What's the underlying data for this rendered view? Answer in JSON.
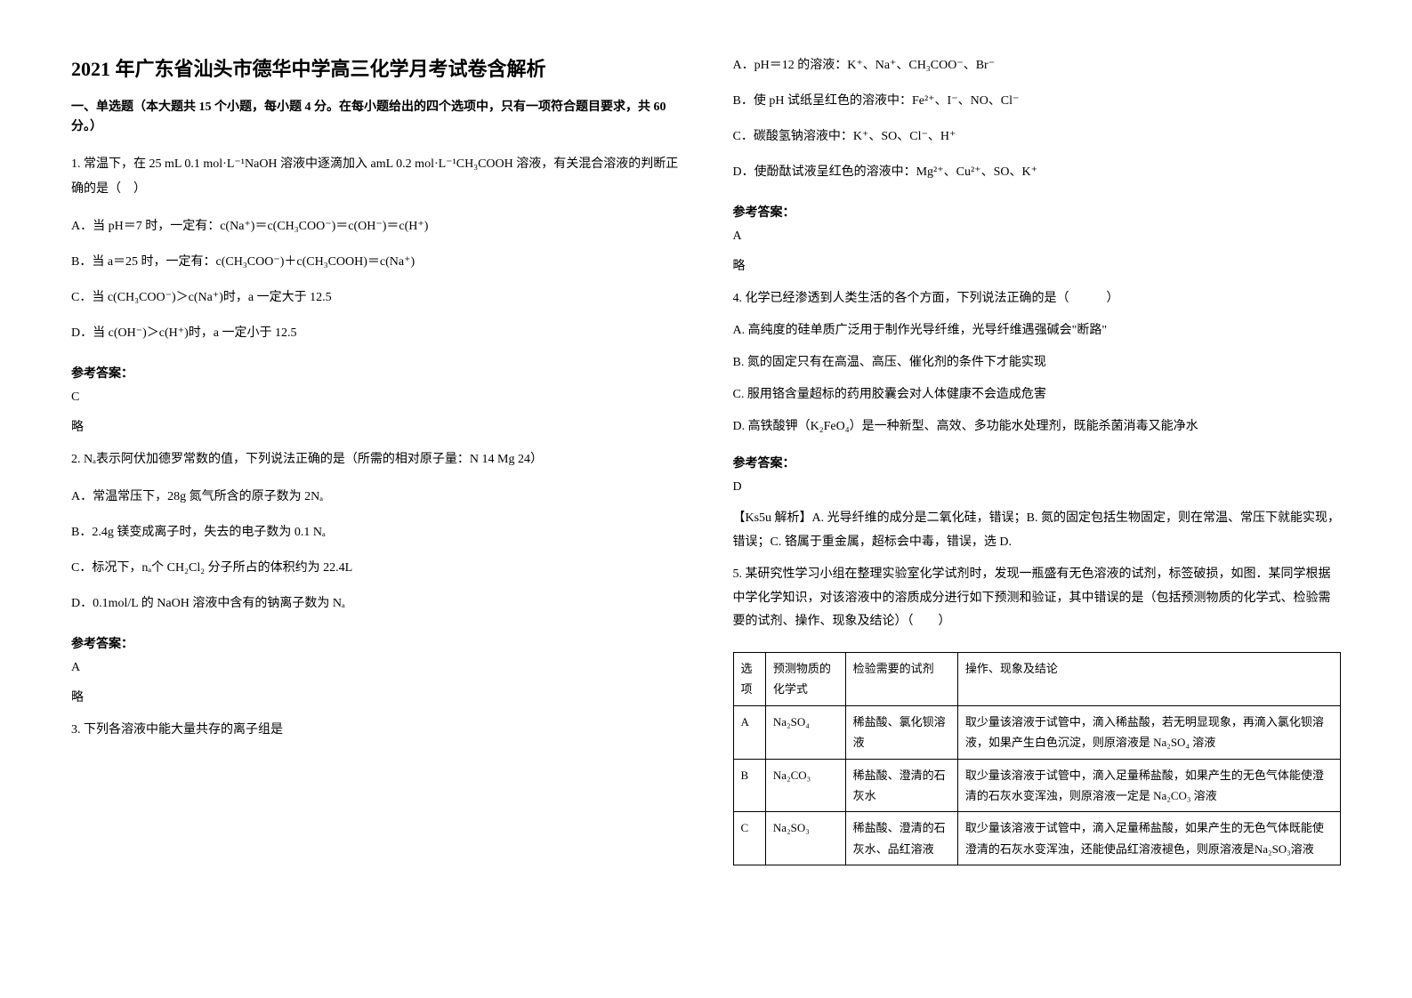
{
  "title": "2021 年广东省汕头市德华中学高三化学月考试卷含解析",
  "section_header": "一、单选题（本大题共 15 个小题，每小题 4 分。在每小题给出的四个选项中，只有一项符合题目要求，共 60 分。）",
  "q1": {
    "text": "1. 常温下，在 25 mL 0.1 mol·L⁻¹NaOH 溶液中逐滴加入 amL 0.2 mol·L⁻¹CH₃COOH 溶液，有关混合溶液的判断正确的是（　）",
    "optA": "A．当 pH＝7 时，一定有：c(Na⁺)＝c(CH₃COO⁻)＝c(OH⁻)＝c(H⁺)",
    "optB": "B．当 a＝25 时，一定有：c(CH₃COO⁻)＋c(CH₃COOH)＝c(Na⁺)",
    "optC": "C．当 c(CH₃COO⁻)＞c(Na⁺)时，a 一定大于 12.5",
    "optD": "D．当 c(OH⁻)＞c(H⁺)时，a 一定小于 12.5",
    "answer_label": "参考答案：",
    "answer": "C",
    "note": "略"
  },
  "q2": {
    "text": "2. Nₐ表示阿伏加德罗常数的值，下列说法正确的是（所需的相对原子量：N  14  Mg  24）",
    "optA": "A．常温常压下，28g 氮气所含的原子数为 2Nₐ",
    "optB": "B．2.4g 镁变成离子时，失去的电子数为 0.1 Nₐ",
    "optC": "C．标况下，nₐ个 CH₂Cl₂ 分子所占的体积约为 22.4L",
    "optD": "D．0.1mol/L 的 NaOH 溶液中含有的钠离子数为 Nₐ",
    "answer_label": "参考答案：",
    "answer": "A",
    "note": "略"
  },
  "q3": {
    "text": "3. 下列各溶液中能大量共存的离子组是",
    "optA": "A．pH＝12 的溶液：K⁺、Na⁺、CH₃COO⁻、Br⁻",
    "optB": "B．使 pH 试纸呈红色的溶液中：Fe²⁺、I⁻、NO、Cl⁻",
    "optC": "C．碳酸氢钠溶液中：K⁺、SO、Cl⁻、H⁺",
    "optD": "D．使酚酞试液呈红色的溶液中：Mg²⁺、Cu²⁺、SO、K⁺",
    "answer_label": "参考答案：",
    "answer": "A",
    "note": "略"
  },
  "q4": {
    "text": "4. 化学已经渗透到人类生活的各个方面，下列说法正确的是（　　　）",
    "optA": "A.  高纯度的硅单质广泛用于制作光导纤维，光导纤维遇强碱会\"断路\"",
    "optB": "B.  氮的固定只有在高温、高压、催化剂的条件下才能实现",
    "optC": "C.  服用铬含量超标的药用胶囊会对人体健康不会造成危害",
    "optD": "D.  高铁酸钾（K₂FeO₄）是一种新型、高效、多功能水处理剂，既能杀菌消毒又能净水",
    "answer_label": "参考答案：",
    "answer": "D",
    "explanation": "【Ks5u 解析】A. 光导纤维的成分是二氧化硅，错误；B. 氮的固定包括生物固定，则在常温、常压下就能实现，错误；C. 铬属于重金属，超标会中毒，错误，选 D."
  },
  "q5": {
    "text": "5. 某研究性学习小组在整理实验室化学试剂时，发现一瓶盛有无色溶液的试剂，标签破损，如图．某同学根据中学化学知识，对该溶液中的溶质成分进行如下预测和验证，其中错误的是（包括预测物质的化学式、检验需要的试剂、操作、现象及结论）（　　）"
  },
  "table": {
    "headers": [
      "选项",
      "预测物质的化学式",
      "检验需要的试剂",
      "操作、现象及结论"
    ],
    "rows": [
      {
        "opt": "A",
        "formula": "Na₂SO₄",
        "reagent": "稀盐酸、氯化钡溶液",
        "procedure": "取少量该溶液于试管中，滴入稀盐酸，若无明显现象，再滴入氯化钡溶液，如果产生白色沉淀，则原溶液是 Na₂SO₄ 溶液"
      },
      {
        "opt": "B",
        "formula": "Na₂CO₃",
        "reagent": "稀盐酸、澄清的石灰水",
        "procedure": "取少量该溶液于试管中，滴入足量稀盐酸，如果产生的无色气体能使澄清的石灰水变浑浊，则原溶液一定是 Na₂CO₃ 溶液"
      },
      {
        "opt": "C",
        "formula": "Na₂SO₃",
        "reagent": "稀盐酸、澄清的石灰水、品红溶液",
        "procedure": "取少量该溶液于试管中，滴入足量稀盐酸，如果产生的无色气体既能使澄清的石灰水变浑浊，还能使品红溶液褪色，则原溶液是Na₂SO₃溶液"
      }
    ]
  },
  "colors": {
    "text": "#000000",
    "background": "#ffffff",
    "border": "#000000"
  },
  "typography": {
    "title_fontsize": 22,
    "body_fontsize": 14,
    "table_fontsize": 13,
    "font_family": "SimSun"
  }
}
